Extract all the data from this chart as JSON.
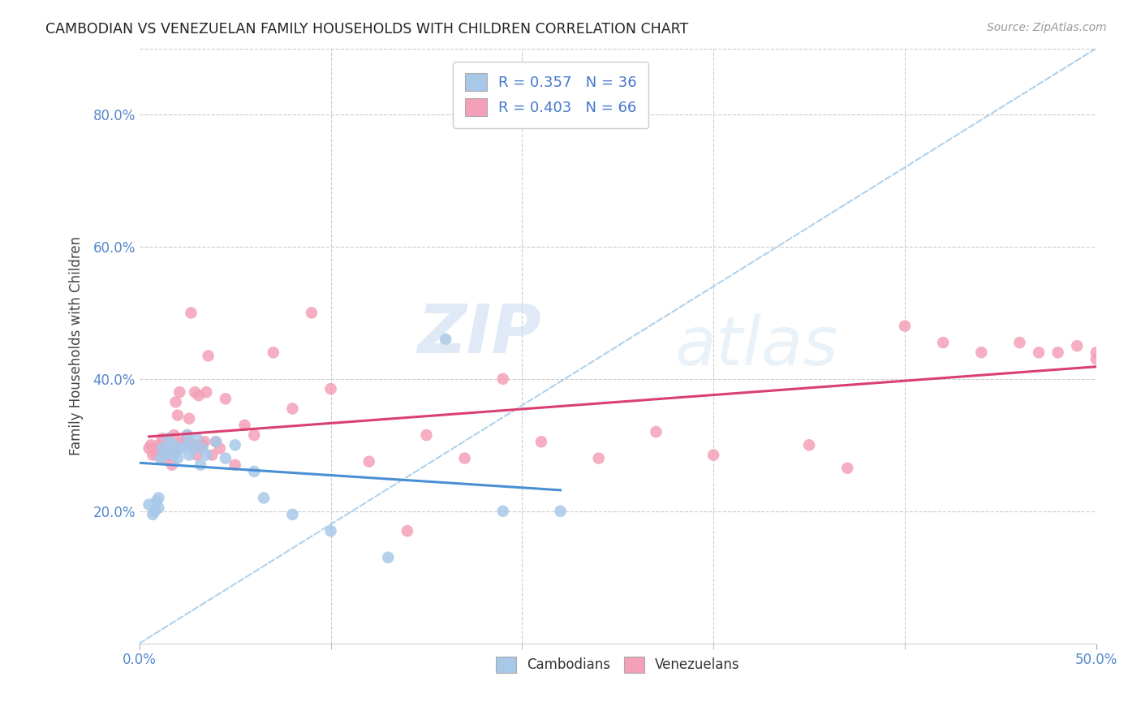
{
  "title": "CAMBODIAN VS VENEZUELAN FAMILY HOUSEHOLDS WITH CHILDREN CORRELATION CHART",
  "source": "Source: ZipAtlas.com",
  "ylabel": "Family Households with Children",
  "xlim": [
    0.0,
    0.5
  ],
  "ylim": [
    0.0,
    0.9
  ],
  "xticks_major": [
    0.0,
    0.5
  ],
  "xticks_minor": [
    0.1,
    0.2,
    0.3,
    0.4
  ],
  "yticks": [
    0.2,
    0.4,
    0.6,
    0.8
  ],
  "cambodian_color": "#a8c8e8",
  "venezuelan_color": "#f4a0b8",
  "trendline_cambodian_color": "#4a8fd4",
  "trendline_venezuelan_color": "#d94070",
  "dashed_line_color": "#a8cce8",
  "legend_label1": "R = 0.357   N = 36",
  "legend_label2": "R = 0.403   N = 66",
  "watermark_zip": "ZIP",
  "watermark_atlas": "atlas",
  "background_color": "#ffffff",
  "grid_color": "#cccccc",
  "cambodian_x": [
    0.005,
    0.007,
    0.008,
    0.009,
    0.01,
    0.01,
    0.011,
    0.012,
    0.013,
    0.015,
    0.015,
    0.016,
    0.018,
    0.018,
    0.02,
    0.02,
    0.022,
    0.025,
    0.025,
    0.026,
    0.028,
    0.03,
    0.032,
    0.033,
    0.035,
    0.04,
    0.045,
    0.05,
    0.06,
    0.065,
    0.08,
    0.1,
    0.13,
    0.16,
    0.19,
    0.22
  ],
  "cambodian_y": [
    0.21,
    0.195,
    0.2,
    0.215,
    0.22,
    0.205,
    0.28,
    0.295,
    0.285,
    0.29,
    0.31,
    0.295,
    0.3,
    0.285,
    0.295,
    0.28,
    0.295,
    0.3,
    0.315,
    0.285,
    0.295,
    0.31,
    0.27,
    0.295,
    0.285,
    0.305,
    0.28,
    0.3,
    0.26,
    0.22,
    0.195,
    0.17,
    0.13,
    0.46,
    0.2,
    0.2
  ],
  "venezuelan_x": [
    0.005,
    0.006,
    0.007,
    0.008,
    0.009,
    0.01,
    0.011,
    0.012,
    0.013,
    0.013,
    0.014,
    0.015,
    0.016,
    0.016,
    0.017,
    0.018,
    0.019,
    0.02,
    0.02,
    0.021,
    0.022,
    0.023,
    0.024,
    0.025,
    0.026,
    0.027,
    0.028,
    0.029,
    0.03,
    0.031,
    0.032,
    0.033,
    0.034,
    0.035,
    0.036,
    0.038,
    0.04,
    0.042,
    0.045,
    0.05,
    0.055,
    0.06,
    0.07,
    0.08,
    0.09,
    0.1,
    0.12,
    0.14,
    0.15,
    0.17,
    0.19,
    0.21,
    0.24,
    0.27,
    0.3,
    0.35,
    0.37,
    0.4,
    0.42,
    0.44,
    0.46,
    0.47,
    0.48,
    0.49,
    0.5,
    0.5
  ],
  "venezuelan_y": [
    0.295,
    0.3,
    0.285,
    0.295,
    0.285,
    0.3,
    0.295,
    0.31,
    0.295,
    0.28,
    0.3,
    0.295,
    0.3,
    0.285,
    0.27,
    0.315,
    0.365,
    0.295,
    0.345,
    0.38,
    0.305,
    0.3,
    0.305,
    0.315,
    0.34,
    0.5,
    0.3,
    0.38,
    0.285,
    0.375,
    0.3,
    0.3,
    0.305,
    0.38,
    0.435,
    0.285,
    0.305,
    0.295,
    0.37,
    0.27,
    0.33,
    0.315,
    0.44,
    0.355,
    0.5,
    0.385,
    0.275,
    0.17,
    0.315,
    0.28,
    0.4,
    0.305,
    0.28,
    0.32,
    0.285,
    0.3,
    0.265,
    0.48,
    0.455,
    0.44,
    0.455,
    0.44,
    0.44,
    0.45,
    0.44,
    0.43
  ]
}
